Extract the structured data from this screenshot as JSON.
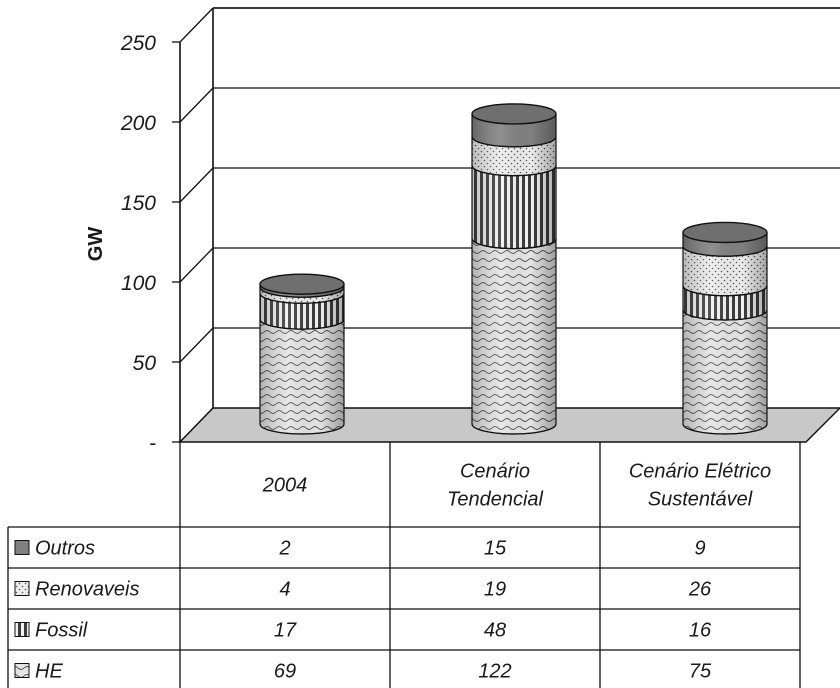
{
  "chart_data": {
    "type": "bar",
    "stacked": true,
    "style": "3d-cylinder",
    "ylabel": "GW",
    "ylim": [
      0,
      250
    ],
    "yticks": [
      "-",
      "50",
      "100",
      "150",
      "200",
      "250"
    ],
    "grid": true,
    "categories": [
      "2004",
      "Cenário Tendencial",
      "Cenário Elétrico Sustentável"
    ],
    "category_lines": [
      [
        "2004"
      ],
      [
        "Cenário",
        "Tendencial"
      ],
      [
        "Cenário Elétrico",
        "Sustentável"
      ]
    ],
    "series": [
      {
        "name": "HE",
        "values": [
          69,
          122,
          75
        ],
        "pattern": "wave"
      },
      {
        "name": "Fossil",
        "values": [
          17,
          48,
          16
        ],
        "pattern": "vertical-stripes"
      },
      {
        "name": "Renovaveis",
        "values": [
          4,
          19,
          26
        ],
        "pattern": "dots"
      },
      {
        "name": "Outros",
        "values": [
          2,
          15,
          9
        ],
        "pattern": "solid-dark"
      }
    ],
    "table_row_order": [
      "Outros",
      "Renovaveis",
      "Fossil",
      "HE"
    ],
    "colors": {
      "HE": "#d9d9d9",
      "Fossil": "#7a7a7a",
      "Renovaveis": "#e6e6e6",
      "Outros": "#7f7f7f",
      "floor": "#c8c8c8"
    }
  }
}
